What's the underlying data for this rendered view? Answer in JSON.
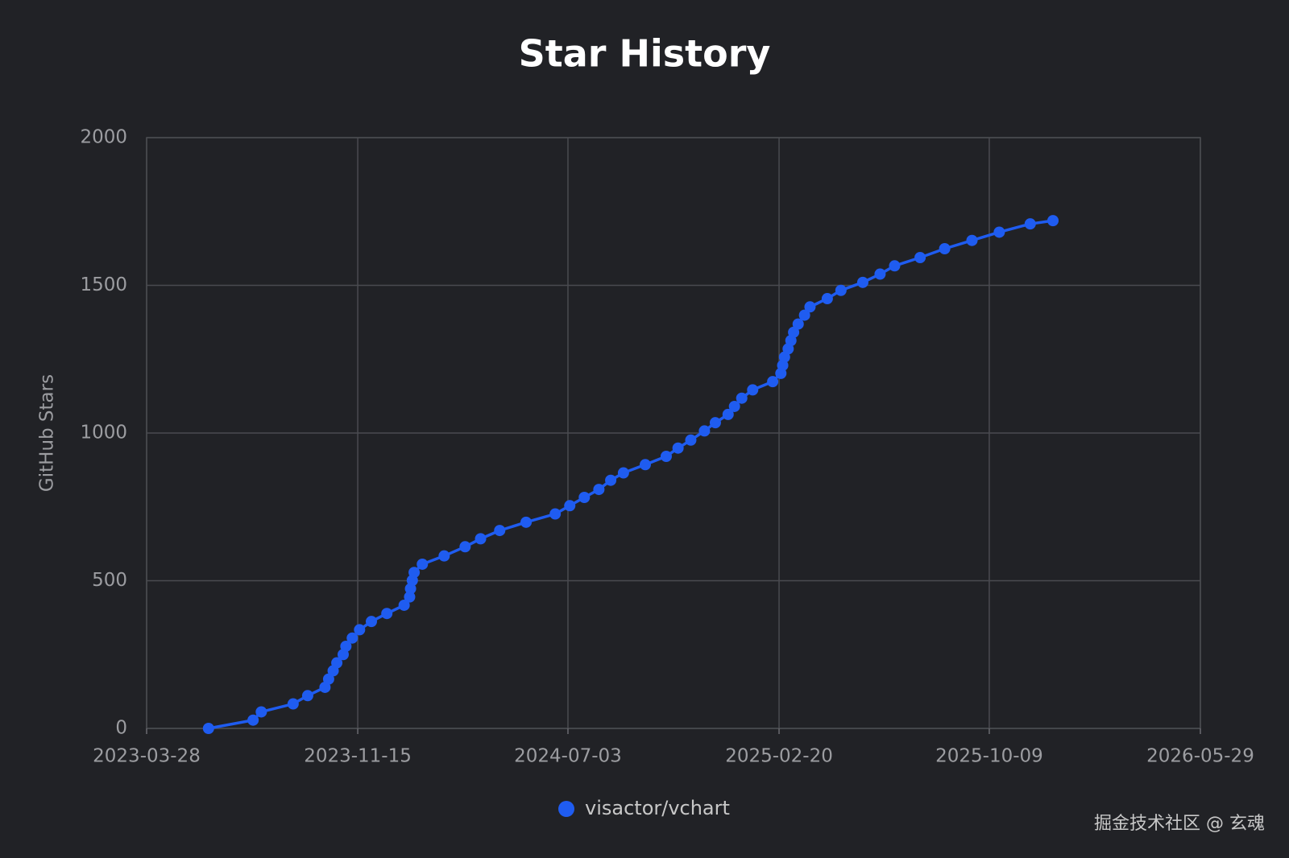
{
  "chart_data": {
    "type": "line",
    "title": "Star History",
    "ylabel": "GitHub Stars",
    "x": [
      "2023-06-04",
      "2023-07-23",
      "2023-08-01",
      "2023-09-05",
      "2023-09-21",
      "2023-10-10",
      "2023-10-14",
      "2023-10-19",
      "2023-10-23",
      "2023-10-30",
      "2023-11-02",
      "2023-11-09",
      "2023-11-17",
      "2023-11-30",
      "2023-12-17",
      "2024-01-05",
      "2024-01-11",
      "2024-01-12",
      "2024-01-14",
      "2024-01-16",
      "2024-01-25",
      "2024-02-18",
      "2024-03-12",
      "2024-03-29",
      "2024-04-19",
      "2024-05-18",
      "2024-06-19",
      "2024-07-05",
      "2024-07-21",
      "2024-08-06",
      "2024-08-19",
      "2024-09-02",
      "2024-09-26",
      "2024-10-19",
      "2024-11-01",
      "2024-11-15",
      "2024-11-30",
      "2024-12-12",
      "2024-12-26",
      "2025-01-02",
      "2025-01-10",
      "2025-01-22",
      "2025-02-13",
      "2025-02-22",
      "2025-02-24",
      "2025-02-26",
      "2025-03-02",
      "2025-03-05",
      "2025-03-08",
      "2025-03-13",
      "2025-03-20",
      "2025-03-26",
      "2025-04-14",
      "2025-04-29",
      "2025-05-23",
      "2025-06-11",
      "2025-06-27",
      "2025-07-25",
      "2025-08-21",
      "2025-09-20",
      "2025-10-20",
      "2025-11-23",
      "2025-12-18"
    ],
    "series": [
      {
        "name": "visactor/vchart",
        "color": "#1f5cf0",
        "values": [
          0,
          28,
          56,
          83,
          111,
          139,
          167,
          195,
          222,
          250,
          278,
          306,
          334,
          362,
          389,
          417,
          445,
          473,
          501,
          528,
          556,
          584,
          615,
          642,
          670,
          698,
          726,
          754,
          782,
          809,
          840,
          865,
          893,
          921,
          949,
          976,
          1007,
          1035,
          1063,
          1090,
          1118,
          1146,
          1174,
          1202,
          1229,
          1257,
          1285,
          1313,
          1341,
          1369,
          1399,
          1427,
          1455,
          1483,
          1510,
          1538,
          1566,
          1594,
          1624,
          1652,
          1680,
          1708,
          1719
        ]
      }
    ],
    "xlim": [
      "2023-03-28",
      "2026-05-29"
    ],
    "xticks": [
      "2023-03-28",
      "2023-11-15",
      "2024-07-03",
      "2025-02-20",
      "2025-10-09",
      "2026-05-29"
    ],
    "ylim": [
      0,
      2000
    ],
    "yticks": [
      0,
      500,
      1000,
      1500,
      2000
    ],
    "grid": true,
    "legend": "bottom",
    "watermark": "掘金技术社区 @ 玄魂"
  }
}
